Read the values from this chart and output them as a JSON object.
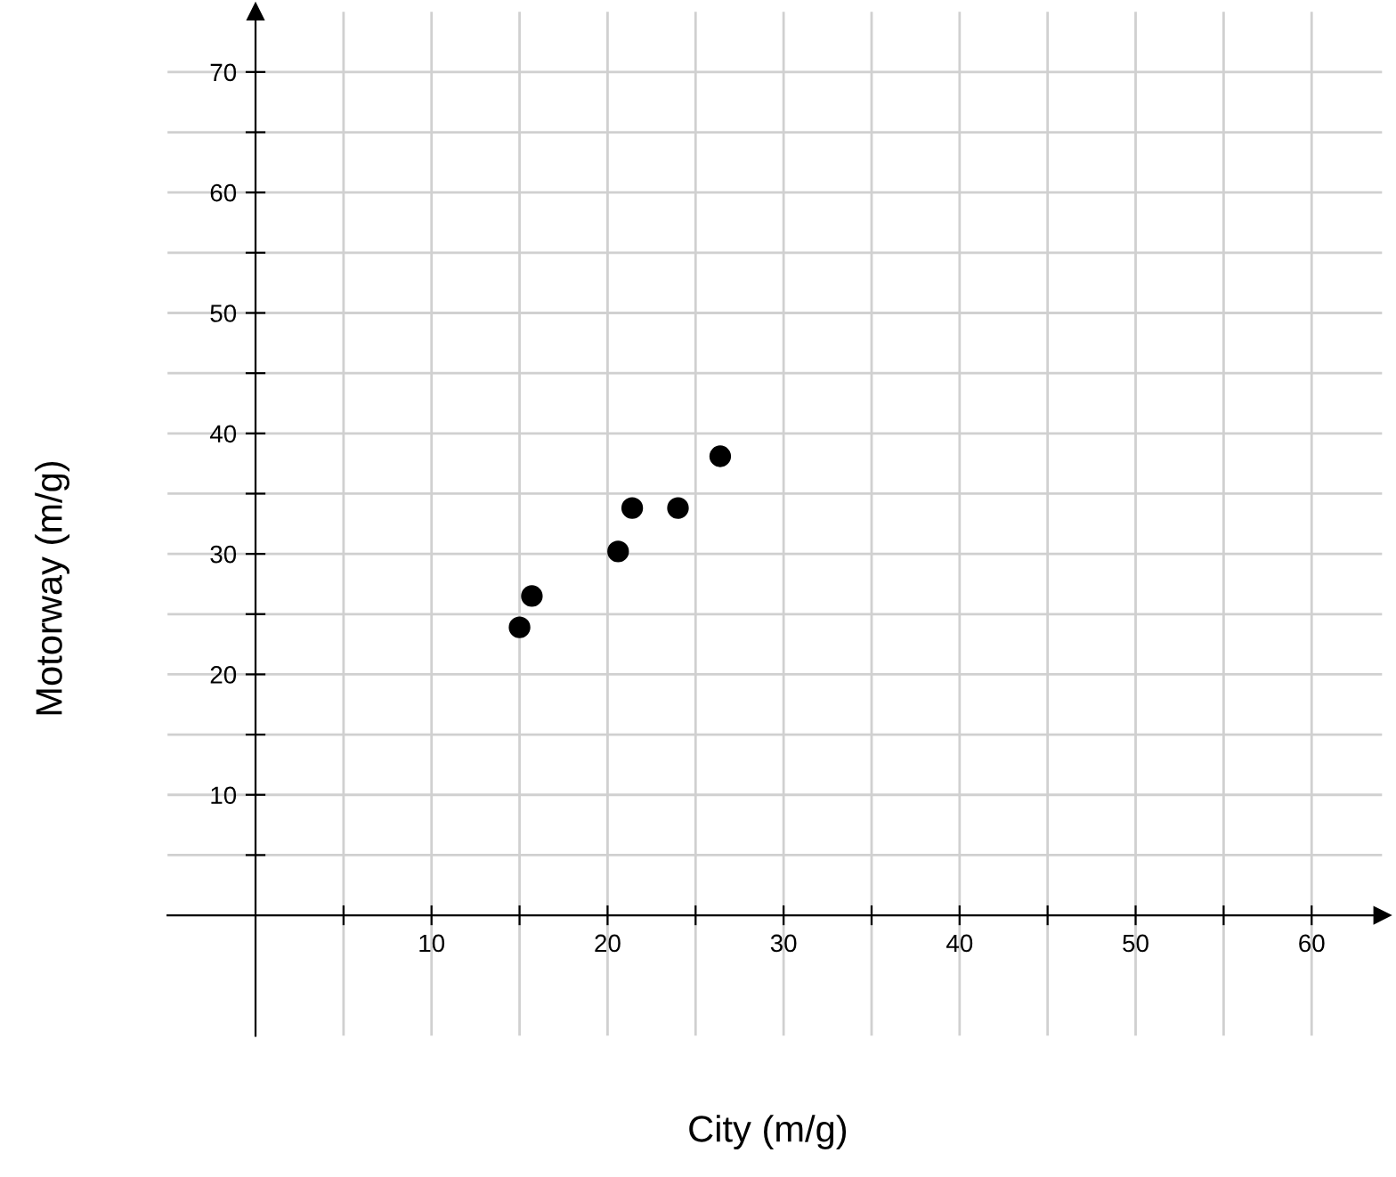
{
  "chart_data": {
    "type": "scatter",
    "xlabel": "City (m/g)",
    "ylabel": "Motorway (m/g)",
    "x": [
      15.0,
      15.7,
      20.6,
      21.4,
      24.0,
      26.4
    ],
    "series": [
      {
        "color": "#000000",
        "values": [
          23.9,
          26.5,
          30.2,
          33.8,
          33.8,
          38.1
        ]
      }
    ],
    "xlim": [
      -5,
      64
    ],
    "ylim": [
      -10,
      75
    ],
    "xticks": [
      {
        "value": 5,
        "label": null
      },
      10,
      {
        "value": 15,
        "label": null
      },
      20,
      {
        "value": 25,
        "label": null
      },
      30,
      {
        "value": 35,
        "label": null
      },
      40,
      {
        "value": 45,
        "label": null
      },
      50,
      {
        "value": 55,
        "label": null
      },
      60
    ],
    "yticks": [
      {
        "value": 5,
        "label": null
      },
      10,
      {
        "value": 15,
        "label": null
      },
      20,
      {
        "value": 25,
        "label": null
      },
      30,
      {
        "value": 35,
        "label": null
      },
      40,
      {
        "value": 45,
        "label": null
      },
      50,
      {
        "value": 55,
        "label": null
      },
      60,
      {
        "value": 65,
        "label": null
      },
      70
    ],
    "grid": true,
    "marker": "circle"
  }
}
